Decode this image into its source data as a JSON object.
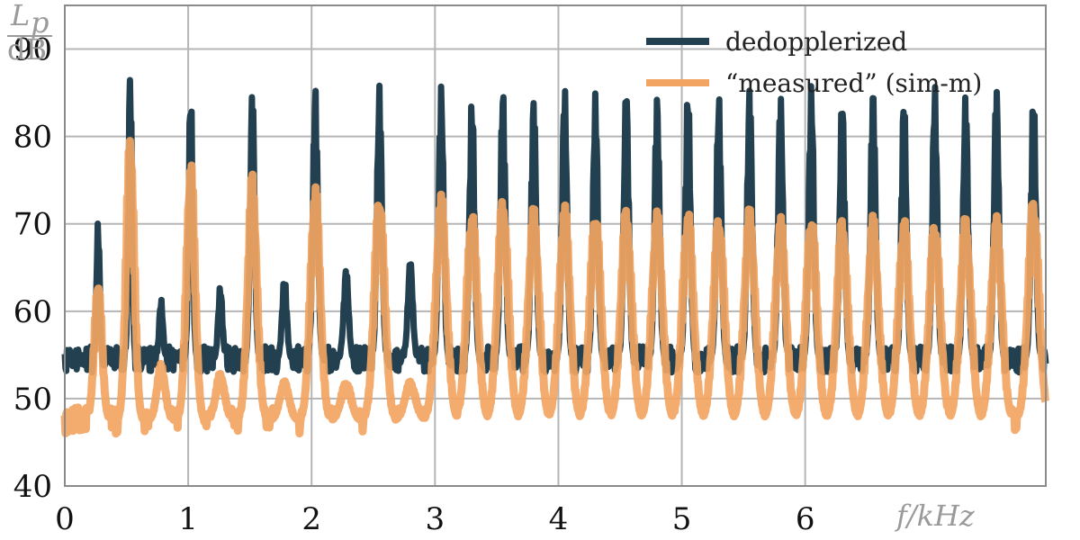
{
  "chart_data": {
    "type": "line",
    "ylabel_numerator": "L",
    "ylabel_subscript": "p",
    "ylabel_denominator": "dB",
    "xlabel": "f/kHz",
    "xlim": [
      0,
      7.95
    ],
    "ylim": [
      40,
      95
    ],
    "x_ticks": [
      0,
      1,
      2,
      3,
      4,
      5,
      6
    ],
    "x_tick_labels": [
      "0",
      "1",
      "2",
      "3",
      "4",
      "5",
      "6"
    ],
    "y_ticks": [
      40,
      50,
      60,
      70,
      80,
      90
    ],
    "y_tick_labels": [
      "40",
      "50",
      "60",
      "70",
      "80",
      "90"
    ],
    "grid": true,
    "legend_position": "top-right",
    "colors": {
      "dedopplerized": "#22404f",
      "measured": "#f2a462"
    },
    "series": [
      {
        "name": "dedopplerized",
        "baseline_db": 54.5,
        "peaks": [
          {
            "f": 0.27,
            "db": 70.5
          },
          {
            "f": 0.53,
            "db": 88.5
          },
          {
            "f": 0.78,
            "db": 61.5
          },
          {
            "f": 1.02,
            "db": 86.5
          },
          {
            "f": 1.26,
            "db": 63
          },
          {
            "f": 1.52,
            "db": 86
          },
          {
            "f": 1.78,
            "db": 64
          },
          {
            "f": 2.03,
            "db": 86
          },
          {
            "f": 2.28,
            "db": 65
          },
          {
            "f": 2.55,
            "db": 86
          },
          {
            "f": 2.8,
            "db": 66
          },
          {
            "f": 3.05,
            "db": 86
          },
          {
            "f": 3.3,
            "db": 85
          },
          {
            "f": 3.55,
            "db": 86
          },
          {
            "f": 3.8,
            "db": 85
          },
          {
            "f": 4.05,
            "db": 86
          },
          {
            "f": 4.3,
            "db": 85
          },
          {
            "f": 4.55,
            "db": 86
          },
          {
            "f": 4.8,
            "db": 85
          },
          {
            "f": 5.05,
            "db": 86
          },
          {
            "f": 5.3,
            "db": 85
          },
          {
            "f": 5.55,
            "db": 86
          },
          {
            "f": 5.8,
            "db": 85
          },
          {
            "f": 6.05,
            "db": 86
          },
          {
            "f": 6.3,
            "db": 85
          },
          {
            "f": 6.55,
            "db": 86
          },
          {
            "f": 6.8,
            "db": 85
          },
          {
            "f": 7.05,
            "db": 86
          },
          {
            "f": 7.3,
            "db": 85
          },
          {
            "f": 7.55,
            "db": 86
          },
          {
            "f": 7.85,
            "db": 85.5
          }
        ]
      },
      {
        "name": "“measured” (sim-m)",
        "baseline_db": 47.5,
        "peaks": [
          {
            "f": 0.27,
            "db": 64
          },
          {
            "f": 0.53,
            "db": 81.5
          },
          {
            "f": 0.78,
            "db": 54
          },
          {
            "f": 1.02,
            "db": 78
          },
          {
            "f": 1.26,
            "db": 53
          },
          {
            "f": 1.52,
            "db": 76
          },
          {
            "f": 1.78,
            "db": 52
          },
          {
            "f": 2.03,
            "db": 75
          },
          {
            "f": 2.28,
            "db": 52
          },
          {
            "f": 2.55,
            "db": 74
          },
          {
            "f": 2.8,
            "db": 52
          },
          {
            "f": 3.05,
            "db": 73.5
          },
          {
            "f": 3.3,
            "db": 72
          },
          {
            "f": 3.55,
            "db": 73.5
          },
          {
            "f": 3.8,
            "db": 72
          },
          {
            "f": 4.05,
            "db": 72.5
          },
          {
            "f": 4.3,
            "db": 72
          },
          {
            "f": 4.55,
            "db": 72
          },
          {
            "f": 4.8,
            "db": 71.5
          },
          {
            "f": 5.05,
            "db": 72
          },
          {
            "f": 5.3,
            "db": 71.5
          },
          {
            "f": 5.55,
            "db": 72
          },
          {
            "f": 5.8,
            "db": 71
          },
          {
            "f": 6.05,
            "db": 71.5
          },
          {
            "f": 6.3,
            "db": 71
          },
          {
            "f": 6.55,
            "db": 71
          },
          {
            "f": 6.8,
            "db": 71
          },
          {
            "f": 7.05,
            "db": 71
          },
          {
            "f": 7.3,
            "db": 71
          },
          {
            "f": 7.55,
            "db": 71
          },
          {
            "f": 7.85,
            "db": 73.5
          }
        ]
      }
    ]
  }
}
